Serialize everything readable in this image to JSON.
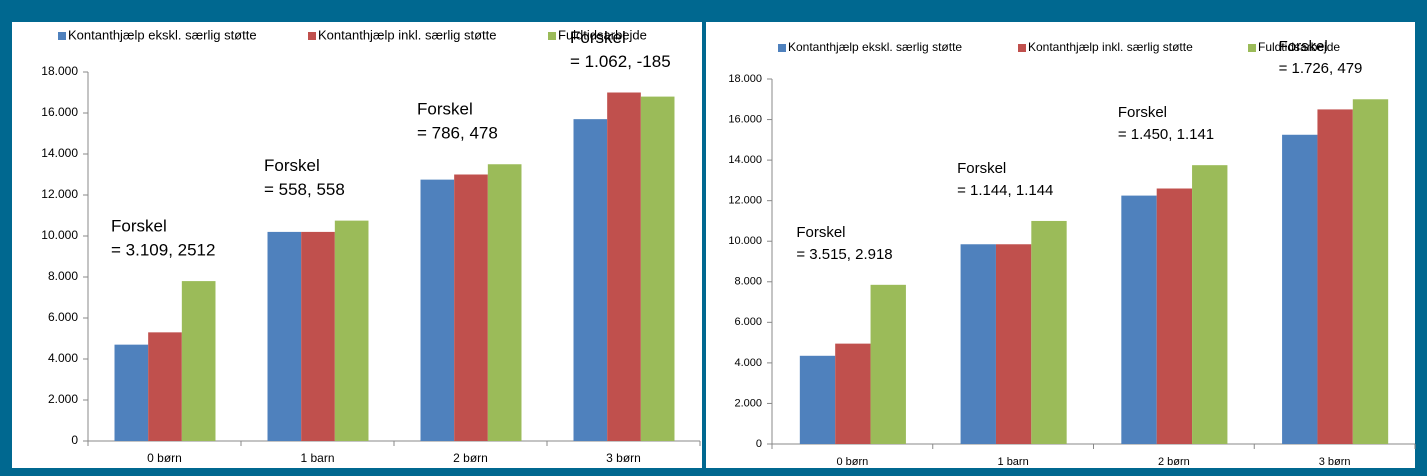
{
  "chart_data": [
    {
      "type": "bar",
      "categories": [
        "0 børn",
        "1 barn",
        "2 børn",
        "3 børn"
      ],
      "series": [
        {
          "name": "Kontanthjælp ekskl. særlig støtte",
          "color": "#4f81bd",
          "values": [
            4700,
            10200,
            12750,
            15700
          ]
        },
        {
          "name": "Kontanthjælp inkl. særlig støtte",
          "color": "#c0504d",
          "values": [
            5300,
            10200,
            13000,
            17000
          ]
        },
        {
          "name": "Fuldtidsarbejde",
          "color": "#9bbb59",
          "values": [
            7800,
            10750,
            13500,
            16800
          ]
        }
      ],
      "annotations": [
        [
          "Forskel",
          "= 3.109, 2512"
        ],
        [
          "Forskel",
          "= 558, 558"
        ],
        [
          "Forskel",
          "= 786, 478"
        ],
        [
          "Forskel",
          "= 1.062, -185"
        ]
      ],
      "ylim": [
        0,
        18000
      ],
      "yticks": [
        0,
        {
          "value": 2000,
          "label": "2.000"
        },
        {
          "value": 4000,
          "label": "4.000"
        },
        {
          "value": 6000,
          "label": "6.000"
        },
        {
          "value": 8000,
          "label": "8.000"
        },
        {
          "value": 10000,
          "label": "10.000"
        },
        {
          "value": 12000,
          "label": "12.000"
        },
        {
          "value": 14000,
          "label": "14.000"
        },
        {
          "value": 16000,
          "label": "16.000"
        },
        {
          "value": 18000,
          "label": "18.000"
        }
      ],
      "legend": "top"
    },
    {
      "type": "bar",
      "categories": [
        "0 børn",
        "1 barn",
        "2 børn",
        "3 børn"
      ],
      "series": [
        {
          "name": "Kontanthjælp ekskl. særlig støtte",
          "color": "#4f81bd",
          "values": [
            4350,
            9850,
            12250,
            15250
          ]
        },
        {
          "name": "Kontanthjælp inkl. særlig støtte",
          "color": "#c0504d",
          "values": [
            4950,
            9850,
            12600,
            16500
          ]
        },
        {
          "name": "Fuldtidsarbejde",
          "color": "#9bbb59",
          "values": [
            7850,
            11000,
            13750,
            17000
          ]
        }
      ],
      "annotations": [
        [
          "Forskel",
          "= 3.515, 2.918"
        ],
        [
          "Forskel",
          "= 1.144, 1.144"
        ],
        [
          "Forskel",
          "= 1.450, 1.141"
        ],
        [
          "Forskel",
          "= 1.726, 479"
        ]
      ],
      "ylim": [
        0,
        18000
      ],
      "yticks": [
        0,
        {
          "value": 2000,
          "label": "2.000"
        },
        {
          "value": 4000,
          "label": "4.000"
        },
        {
          "value": 6000,
          "label": "6.000"
        },
        {
          "value": 8000,
          "label": "8.000"
        },
        {
          "value": 10000,
          "label": "10.000"
        },
        {
          "value": 12000,
          "label": "12.000"
        },
        {
          "value": 14000,
          "label": "14.000"
        },
        {
          "value": 16000,
          "label": "16.000"
        },
        {
          "value": 18000,
          "label": "18.000"
        }
      ],
      "legend": "top"
    }
  ]
}
